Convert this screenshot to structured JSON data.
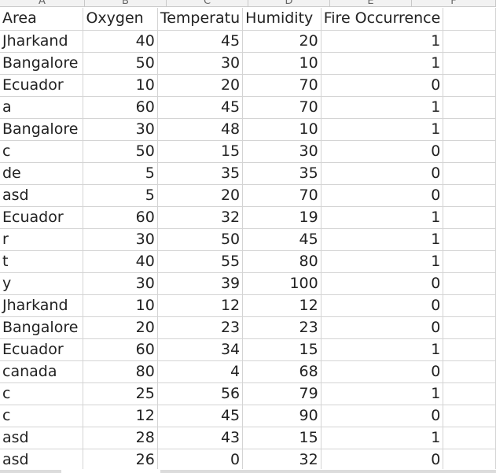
{
  "columns": [
    "A",
    "B",
    "C",
    "D",
    "E",
    "F"
  ],
  "headers": [
    "Area",
    "Oxygen",
    "Temperatu",
    "Humidity",
    "Fire Occurrence",
    ""
  ],
  "rows": [
    [
      "Jharkand",
      "40",
      "45",
      "20",
      "1"
    ],
    [
      "Bangalore",
      "50",
      "30",
      "10",
      "1"
    ],
    [
      "Ecuador",
      "10",
      "20",
      "70",
      "0"
    ],
    [
      "a",
      "60",
      "45",
      "70",
      "1"
    ],
    [
      "Bangalore",
      "30",
      "48",
      "10",
      "1"
    ],
    [
      "c",
      "50",
      "15",
      "30",
      "0"
    ],
    [
      "de",
      "5",
      "35",
      "35",
      "0"
    ],
    [
      "asd",
      "5",
      "20",
      "70",
      "0"
    ],
    [
      "Ecuador",
      "60",
      "32",
      "19",
      "1"
    ],
    [
      "r",
      "30",
      "50",
      "45",
      "1"
    ],
    [
      "t",
      "40",
      "55",
      "80",
      "1"
    ],
    [
      "y",
      "30",
      "39",
      "100",
      "0"
    ],
    [
      "Jharkand",
      "10",
      "12",
      "12",
      "0"
    ],
    [
      "Bangalore",
      "20",
      "23",
      "23",
      "0"
    ],
    [
      "Ecuador",
      "60",
      "34",
      "15",
      "1"
    ],
    [
      "canada",
      "80",
      "4",
      "68",
      "0"
    ],
    [
      "c",
      "25",
      "56",
      "79",
      "1"
    ],
    [
      "c",
      "12",
      "45",
      "90",
      "0"
    ],
    [
      "asd",
      "28",
      "43",
      "15",
      "1"
    ],
    [
      "asd",
      "26",
      "0",
      "32",
      "0"
    ]
  ]
}
